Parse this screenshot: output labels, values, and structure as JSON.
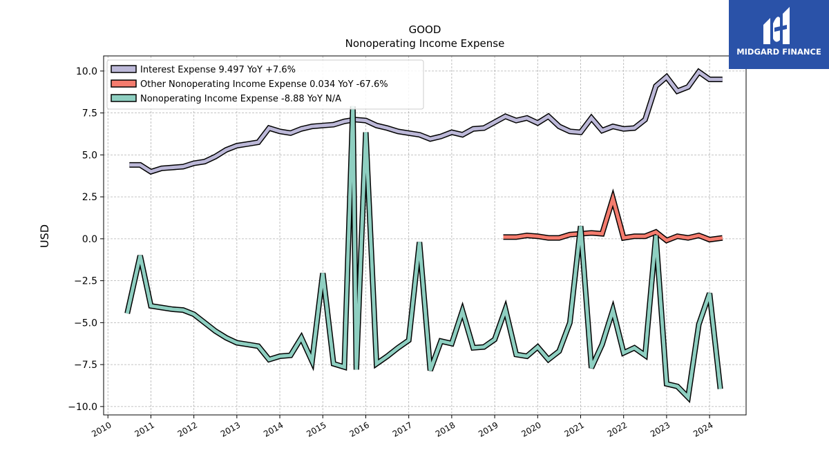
{
  "chart_data": {
    "type": "line",
    "title": "GOOD",
    "subtitle": "Nonoperating Income Expense",
    "xlabel": "",
    "ylabel": "USD",
    "xlim": [
      2009.9,
      2024.85
    ],
    "ylim": [
      -10.5,
      10.9
    ],
    "x_ticks": [
      2010,
      2011,
      2012,
      2013,
      2014,
      2015,
      2016,
      2017,
      2018,
      2019,
      2020,
      2021,
      2022,
      2023,
      2024
    ],
    "y_ticks": [
      -10.0,
      -7.5,
      -5.0,
      -2.5,
      0.0,
      2.5,
      5.0,
      7.5,
      10.0
    ],
    "y_tick_labels": [
      "−10.0",
      "−7.5",
      "−5.0",
      "−2.5",
      "0.0",
      "2.5",
      "5.0",
      "7.5",
      "10.0"
    ],
    "grid": true,
    "legend_position": "top-left",
    "series": [
      {
        "name": "Interest Expense",
        "legend_label": "Interest Expense  9.497 YoY +7.6%",
        "color": "#bcb8d8",
        "points": [
          [
            2010.5,
            4.4
          ],
          [
            2010.75,
            4.4
          ],
          [
            2011.0,
            4.0
          ],
          [
            2011.25,
            4.2
          ],
          [
            2011.5,
            4.25
          ],
          [
            2011.75,
            4.3
          ],
          [
            2012.0,
            4.5
          ],
          [
            2012.25,
            4.6
          ],
          [
            2012.5,
            4.9
          ],
          [
            2012.75,
            5.3
          ],
          [
            2013.0,
            5.55
          ],
          [
            2013.25,
            5.65
          ],
          [
            2013.5,
            5.75
          ],
          [
            2013.75,
            6.6
          ],
          [
            2014.0,
            6.4
          ],
          [
            2014.25,
            6.3
          ],
          [
            2014.5,
            6.55
          ],
          [
            2014.75,
            6.7
          ],
          [
            2015.0,
            6.75
          ],
          [
            2015.25,
            6.8
          ],
          [
            2015.5,
            7.0
          ],
          [
            2015.75,
            7.1
          ],
          [
            2016.0,
            7.05
          ],
          [
            2016.25,
            6.75
          ],
          [
            2016.5,
            6.6
          ],
          [
            2016.75,
            6.4
          ],
          [
            2017.0,
            6.3
          ],
          [
            2017.25,
            6.2
          ],
          [
            2017.5,
            5.95
          ],
          [
            2017.75,
            6.1
          ],
          [
            2018.0,
            6.35
          ],
          [
            2018.25,
            6.2
          ],
          [
            2018.5,
            6.55
          ],
          [
            2018.75,
            6.6
          ],
          [
            2019.0,
            6.95
          ],
          [
            2019.25,
            7.3
          ],
          [
            2019.5,
            7.05
          ],
          [
            2019.75,
            7.2
          ],
          [
            2020.0,
            6.9
          ],
          [
            2020.25,
            7.3
          ],
          [
            2020.5,
            6.7
          ],
          [
            2020.75,
            6.4
          ],
          [
            2021.0,
            6.35
          ],
          [
            2021.25,
            7.2
          ],
          [
            2021.5,
            6.45
          ],
          [
            2021.75,
            6.7
          ],
          [
            2022.0,
            6.55
          ],
          [
            2022.25,
            6.6
          ],
          [
            2022.5,
            7.1
          ],
          [
            2022.75,
            9.1
          ],
          [
            2023.0,
            9.65
          ],
          [
            2023.25,
            8.8
          ],
          [
            2023.5,
            9.05
          ],
          [
            2023.75,
            9.95
          ],
          [
            2024.0,
            9.5
          ],
          [
            2024.3,
            9.5
          ]
        ]
      },
      {
        "name": "Other Nonoperating Income Expense",
        "legend_label": "Other Nonoperating Income Expense  0.034 YoY -67.6%",
        "color": "#f47c6e",
        "points": [
          [
            2019.2,
            0.1
          ],
          [
            2019.5,
            0.1
          ],
          [
            2019.75,
            0.2
          ],
          [
            2020.0,
            0.15
          ],
          [
            2020.25,
            0.05
          ],
          [
            2020.5,
            0.05
          ],
          [
            2020.75,
            0.25
          ],
          [
            2021.0,
            0.3
          ],
          [
            2021.25,
            0.35
          ],
          [
            2021.5,
            0.3
          ],
          [
            2021.75,
            2.4
          ],
          [
            2022.0,
            0.05
          ],
          [
            2022.25,
            0.15
          ],
          [
            2022.5,
            0.15
          ],
          [
            2022.75,
            0.4
          ],
          [
            2023.0,
            -0.1
          ],
          [
            2023.25,
            0.15
          ],
          [
            2023.5,
            0.05
          ],
          [
            2023.75,
            0.2
          ],
          [
            2024.0,
            -0.05
          ],
          [
            2024.3,
            0.05
          ]
        ]
      },
      {
        "name": "Nonoperating Income Expense",
        "legend_label": "Nonoperating Income Expense  -8.88 YoY N/A",
        "color": "#8ecfc1",
        "points": [
          [
            2010.45,
            -4.45
          ],
          [
            2010.75,
            -1.0
          ],
          [
            2011.0,
            -4.0
          ],
          [
            2011.25,
            -4.1
          ],
          [
            2011.5,
            -4.2
          ],
          [
            2011.75,
            -4.25
          ],
          [
            2012.0,
            -4.5
          ],
          [
            2012.25,
            -5.0
          ],
          [
            2012.5,
            -5.5
          ],
          [
            2012.75,
            -5.9
          ],
          [
            2013.0,
            -6.2
          ],
          [
            2013.25,
            -6.3
          ],
          [
            2013.5,
            -6.4
          ],
          [
            2013.75,
            -7.2
          ],
          [
            2014.0,
            -7.0
          ],
          [
            2014.25,
            -6.95
          ],
          [
            2014.5,
            -5.9
          ],
          [
            2014.75,
            -7.3
          ],
          [
            2015.0,
            -2.05
          ],
          [
            2015.25,
            -7.45
          ],
          [
            2015.5,
            -7.65
          ],
          [
            2015.7,
            7.9
          ],
          [
            2015.78,
            -7.8
          ],
          [
            2016.0,
            6.35
          ],
          [
            2016.25,
            -7.45
          ],
          [
            2016.5,
            -7.0
          ],
          [
            2016.75,
            -6.5
          ],
          [
            2017.0,
            -6.05
          ],
          [
            2017.25,
            -0.2
          ],
          [
            2017.5,
            -7.85
          ],
          [
            2017.75,
            -6.1
          ],
          [
            2018.0,
            -6.25
          ],
          [
            2018.25,
            -4.3
          ],
          [
            2018.5,
            -6.5
          ],
          [
            2018.75,
            -6.45
          ],
          [
            2019.0,
            -6.0
          ],
          [
            2019.25,
            -4.2
          ],
          [
            2019.5,
            -6.9
          ],
          [
            2019.75,
            -7.0
          ],
          [
            2020.0,
            -6.45
          ],
          [
            2020.25,
            -7.2
          ],
          [
            2020.5,
            -6.7
          ],
          [
            2020.75,
            -5.0
          ],
          [
            2021.0,
            0.75
          ],
          [
            2021.25,
            -7.7
          ],
          [
            2021.5,
            -6.3
          ],
          [
            2021.75,
            -4.25
          ],
          [
            2022.0,
            -6.8
          ],
          [
            2022.25,
            -6.5
          ],
          [
            2022.5,
            -6.95
          ],
          [
            2022.75,
            0.2
          ],
          [
            2023.0,
            -8.65
          ],
          [
            2023.25,
            -8.8
          ],
          [
            2023.5,
            -9.45
          ],
          [
            2023.75,
            -5.1
          ],
          [
            2024.0,
            -3.25
          ],
          [
            2024.25,
            -8.95
          ]
        ]
      }
    ]
  },
  "logo": {
    "text": "MIDGARD FINANCE",
    "color": "#2a52a8"
  }
}
